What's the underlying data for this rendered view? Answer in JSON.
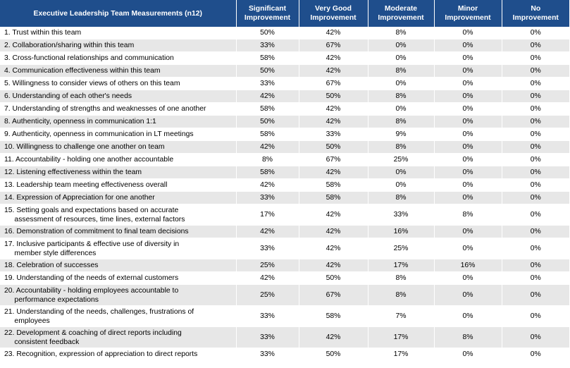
{
  "table": {
    "headers": [
      "Executive Leadership Team Measurements (n12)",
      "Significant\nImprovement",
      "Very Good\nImprovement",
      "Moderate\nImprovement",
      "Minor\nImprovement",
      "No\nImprovement"
    ],
    "rows": [
      {
        "label": "1. Trust within this team",
        "values": [
          "50%",
          "42%",
          "8%",
          "0%",
          "0%"
        ]
      },
      {
        "label": "2. Collaboration/sharing within this team",
        "values": [
          "33%",
          "67%",
          "0%",
          "0%",
          "0%"
        ]
      },
      {
        "label": "3. Cross-functional relationships and communication",
        "values": [
          "58%",
          "42%",
          "0%",
          "0%",
          "0%"
        ]
      },
      {
        "label": "4. Communication effectiveness within this team",
        "values": [
          "50%",
          "42%",
          "8%",
          "0%",
          "0%"
        ]
      },
      {
        "label": "5. Willingness to consider views of others on this team",
        "values": [
          "33%",
          "67%",
          "0%",
          "0%",
          "0%"
        ]
      },
      {
        "label": "6. Understanding of each other's needs",
        "values": [
          "42%",
          "50%",
          "8%",
          "0%",
          "0%"
        ]
      },
      {
        "label": "7. Understanding of strengths and weaknesses of one another",
        "values": [
          "58%",
          "42%",
          "0%",
          "0%",
          "0%"
        ]
      },
      {
        "label": "8. Authenticity, openness in communication 1:1",
        "values": [
          "50%",
          "42%",
          "8%",
          "0%",
          "0%"
        ]
      },
      {
        "label": "9. Authenticity, openness in communication in LT meetings",
        "values": [
          "58%",
          "33%",
          "9%",
          "0%",
          "0%"
        ]
      },
      {
        "label": "10. Willingness to challenge one another on team",
        "values": [
          "42%",
          "50%",
          "8%",
          "0%",
          "0%"
        ]
      },
      {
        "label": "11. Accountability - holding one another accountable",
        "values": [
          "8%",
          "67%",
          "25%",
          "0%",
          "0%"
        ]
      },
      {
        "label": "12. Listening effectiveness within the team",
        "values": [
          "58%",
          "42%",
          "0%",
          "0%",
          "0%"
        ]
      },
      {
        "label": "13. Leadership team meeting effectiveness overall",
        "values": [
          "42%",
          "58%",
          "0%",
          "0%",
          "0%"
        ]
      },
      {
        "label": "14. Expression of Appreciation for one another",
        "values": [
          "33%",
          "58%",
          "8%",
          "0%",
          "0%"
        ]
      },
      {
        "label": "15. Setting goals and expectations based on accurate\n     assessment of resources, time lines, external factors",
        "values": [
          "17%",
          "42%",
          "33%",
          "8%",
          "0%"
        ]
      },
      {
        "label": "16. Demonstration of commitment to final team decisions",
        "values": [
          "42%",
          "42%",
          "16%",
          "0%",
          "0%"
        ]
      },
      {
        "label": "17. Inclusive participants & effective use of diversity in\n     member style differences",
        "values": [
          "33%",
          "42%",
          "25%",
          "0%",
          "0%"
        ]
      },
      {
        "label": "18. Celebration of successes",
        "values": [
          "25%",
          "42%",
          "17%",
          "16%",
          "0%"
        ]
      },
      {
        "label": "19. Understanding of the needs of external customers",
        "values": [
          "42%",
          "50%",
          "8%",
          "0%",
          "0%"
        ]
      },
      {
        "label": "20. Accountability - holding employees accountable to\n     performance expectations",
        "values": [
          "25%",
          "67%",
          "8%",
          "0%",
          "0%"
        ]
      },
      {
        "label": "21. Understanding of the needs, challenges, frustrations of\n     employees",
        "values": [
          "33%",
          "58%",
          "7%",
          "0%",
          "0%"
        ]
      },
      {
        "label": "22. Development & coaching of direct reports including\n     consistent feedback",
        "values": [
          "33%",
          "42%",
          "17%",
          "8%",
          "0%"
        ]
      },
      {
        "label": "23. Recognition, expression of appreciation to direct reports",
        "values": [
          "33%",
          "50%",
          "17%",
          "0%",
          "0%"
        ]
      }
    ]
  }
}
